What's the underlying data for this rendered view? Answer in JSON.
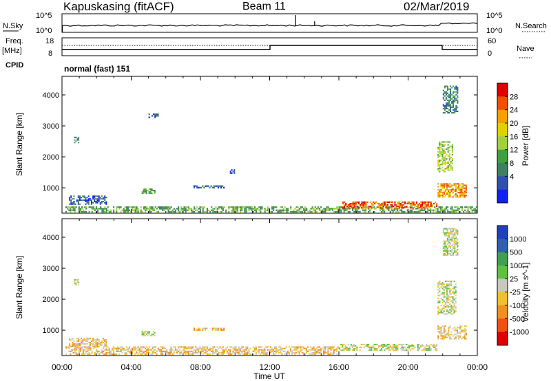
{
  "header": {
    "site": "Kapuskasing (fitACF)",
    "beam": "Beam 11",
    "date": "02/Mar/2019"
  },
  "noise_panel": {
    "left_label": "N.Sky",
    "right_label": "N.Search",
    "left_ticks": [
      "10^5",
      "10^0"
    ],
    "right_ticks": [
      "10^5",
      "10^0"
    ]
  },
  "freq_panel": {
    "left_label_1": "Freq.",
    "left_label_2": "[MHz]",
    "right_label": "Nave",
    "left_ticks": [
      "18",
      "8"
    ],
    "right_ticks": [
      "60",
      "0"
    ],
    "cpid_label": "CPID",
    "mode_text": "normal (fast) 151"
  },
  "time_axis": {
    "label": "Time UT",
    "ticks": [
      "00:00",
      "04:00",
      "08:00",
      "12:00",
      "16:00",
      "20:00",
      "00:00"
    ]
  },
  "chart_data": [
    {
      "type": "heatmap",
      "title": "Power",
      "xlabel": "Time UT",
      "ylabel": "Slant Range [km]",
      "xlim_hours": [
        0,
        24
      ],
      "ylim_km": [
        180,
        4600
      ],
      "y_ticks": [
        1000,
        2000,
        3000,
        4000
      ],
      "colorbar": {
        "label": "Power [dB]",
        "ticks": [
          "28",
          "24",
          "20",
          "16",
          "12",
          "8",
          "4"
        ],
        "colors": [
          "#e00000",
          "#f05000",
          "#f5a000",
          "#e0d000",
          "#a0d040",
          "#40a040",
          "#408060",
          "#3050b0",
          "#1020f0"
        ]
      },
      "regions": [
        {
          "t": [
            0.2,
            24.0
          ],
          "r": [
            200,
            400
          ],
          "level": 5
        },
        {
          "t": [
            16.2,
            21.7
          ],
          "r": [
            330,
            560
          ],
          "level": 1
        },
        {
          "t": [
            21.7,
            23.4
          ],
          "r": [
            680,
            1150
          ],
          "level": 2
        },
        {
          "t": [
            21.7,
            22.6
          ],
          "r": [
            1500,
            2500
          ],
          "level": 4
        },
        {
          "t": [
            22.0,
            22.9
          ],
          "r": [
            3400,
            4300
          ],
          "level": 6
        },
        {
          "t": [
            0.7,
            1.0
          ],
          "r": [
            2440,
            2650
          ],
          "level": 6
        },
        {
          "t": [
            4.6,
            5.4
          ],
          "r": [
            800,
            980
          ],
          "level": 5
        },
        {
          "t": [
            7.6,
            9.4
          ],
          "r": [
            980,
            1080
          ],
          "level": 7
        },
        {
          "t": [
            5.0,
            5.6
          ],
          "r": [
            3250,
            3400
          ],
          "level": 7
        },
        {
          "t": [
            0.4,
            2.6
          ],
          "r": [
            450,
            750
          ],
          "level": 7
        },
        {
          "t": [
            9.7,
            10.0
          ],
          "r": [
            1450,
            1600
          ],
          "level": 7
        }
      ]
    },
    {
      "type": "heatmap",
      "title": "Velocity",
      "xlabel": "Time UT",
      "ylabel": "Slant Range [km]",
      "xlim_hours": [
        0,
        24
      ],
      "ylim_km": [
        180,
        4600
      ],
      "y_ticks": [
        1000,
        2000,
        3000,
        4000
      ],
      "colorbar": {
        "label": "Velocity [m s^-1]",
        "ticks": [
          "1000",
          "500",
          "100",
          "25",
          "-25",
          "-100",
          "-500",
          "-1000"
        ],
        "colors": [
          "#2040c0",
          "#3060b0",
          "#40a050",
          "#60c040",
          "#c8c8c0",
          "#f0c030",
          "#f09020",
          "#f05010",
          "#e00000"
        ]
      },
      "regions": [
        {
          "t": [
            0.2,
            16.0
          ],
          "r": [
            200,
            480
          ],
          "level": 5
        },
        {
          "t": [
            16.0,
            21.7
          ],
          "r": [
            330,
            560
          ],
          "level": 4
        },
        {
          "t": [
            21.7,
            23.4
          ],
          "r": [
            700,
            1150
          ],
          "level": 5
        },
        {
          "t": [
            21.7,
            22.8
          ],
          "r": [
            1500,
            2600
          ],
          "level": 4
        },
        {
          "t": [
            22.0,
            22.9
          ],
          "r": [
            3400,
            4300
          ],
          "level": 4
        },
        {
          "t": [
            0.7,
            1.0
          ],
          "r": [
            2440,
            2650
          ],
          "level": 4
        },
        {
          "t": [
            4.6,
            5.4
          ],
          "r": [
            800,
            980
          ],
          "level": 4
        },
        {
          "t": [
            7.6,
            9.4
          ],
          "r": [
            980,
            1080
          ],
          "level": 5
        },
        {
          "t": [
            0.4,
            2.6
          ],
          "r": [
            450,
            750
          ],
          "level": 5
        }
      ]
    }
  ]
}
